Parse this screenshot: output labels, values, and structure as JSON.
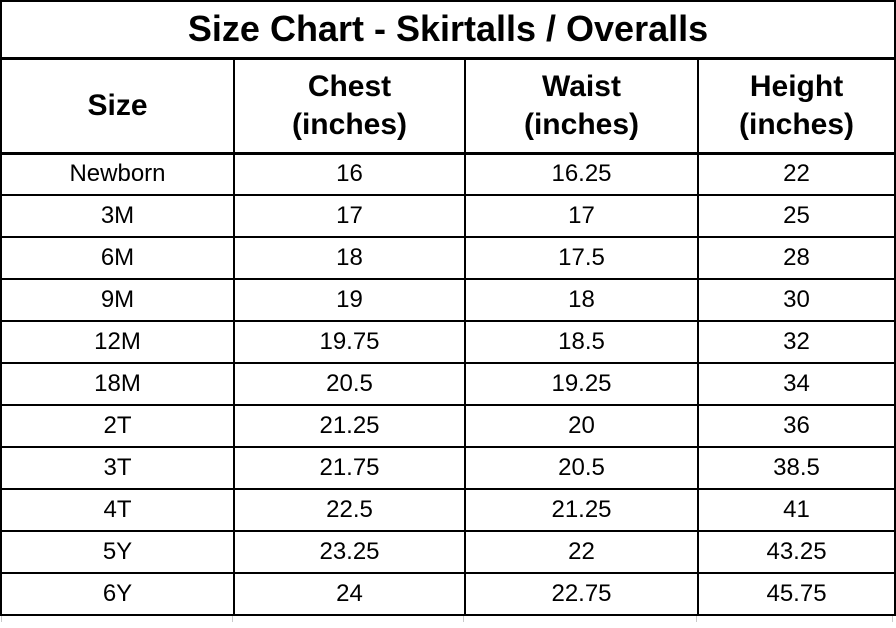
{
  "title": "Size Chart - Skirtalls / Overalls",
  "colors": {
    "border": "#000000",
    "text": "#000000",
    "background": "#ffffff",
    "faint_grid": "#c9c9c9"
  },
  "table": {
    "columns": [
      {
        "label": "Size",
        "sub": ""
      },
      {
        "label": "Chest",
        "sub": "(inches)"
      },
      {
        "label": "Waist",
        "sub": "(inches)"
      },
      {
        "label": "Height",
        "sub": "(inches)"
      }
    ],
    "rows": [
      {
        "cells": [
          "Newborn",
          "16",
          "16.25",
          "22"
        ]
      },
      {
        "cells": [
          "3M",
          "17",
          "17",
          "25"
        ]
      },
      {
        "cells": [
          "6M",
          "18",
          "17.5",
          "28"
        ]
      },
      {
        "cells": [
          "9M",
          "19",
          "18",
          "30"
        ]
      },
      {
        "cells": [
          "12M",
          "19.75",
          "18.5",
          "32"
        ]
      },
      {
        "cells": [
          "18M",
          "20.5",
          "19.25",
          "34"
        ]
      },
      {
        "cells": [
          "2T",
          "21.25",
          "20",
          "36"
        ]
      },
      {
        "cells": [
          "3T",
          "21.75",
          "20.5",
          "38.5"
        ]
      },
      {
        "cells": [
          "4T",
          "22.5",
          "21.25",
          "41"
        ]
      },
      {
        "cells": [
          "5Y",
          "23.25",
          "22",
          "43.25"
        ]
      },
      {
        "cells": [
          "6Y",
          "24",
          "22.75",
          "45.75"
        ]
      }
    ]
  },
  "chart_data": {
    "type": "table",
    "title": "Size Chart - Skirtalls / Overalls",
    "columns": [
      "Size",
      "Chest (inches)",
      "Waist (inches)",
      "Height (inches)"
    ],
    "rows": [
      [
        "Newborn",
        16,
        16.25,
        22
      ],
      [
        "3M",
        17,
        17,
        25
      ],
      [
        "6M",
        18,
        17.5,
        28
      ],
      [
        "9M",
        19,
        18,
        30
      ],
      [
        "12M",
        19.75,
        18.5,
        32
      ],
      [
        "18M",
        20.5,
        19.25,
        34
      ],
      [
        "2T",
        21.25,
        20,
        36
      ],
      [
        "3T",
        21.75,
        20.5,
        38.5
      ],
      [
        "4T",
        22.5,
        21.25,
        41
      ],
      [
        "5Y",
        23.25,
        22,
        43.25
      ],
      [
        "6Y",
        24,
        22.75,
        45.75
      ]
    ]
  }
}
